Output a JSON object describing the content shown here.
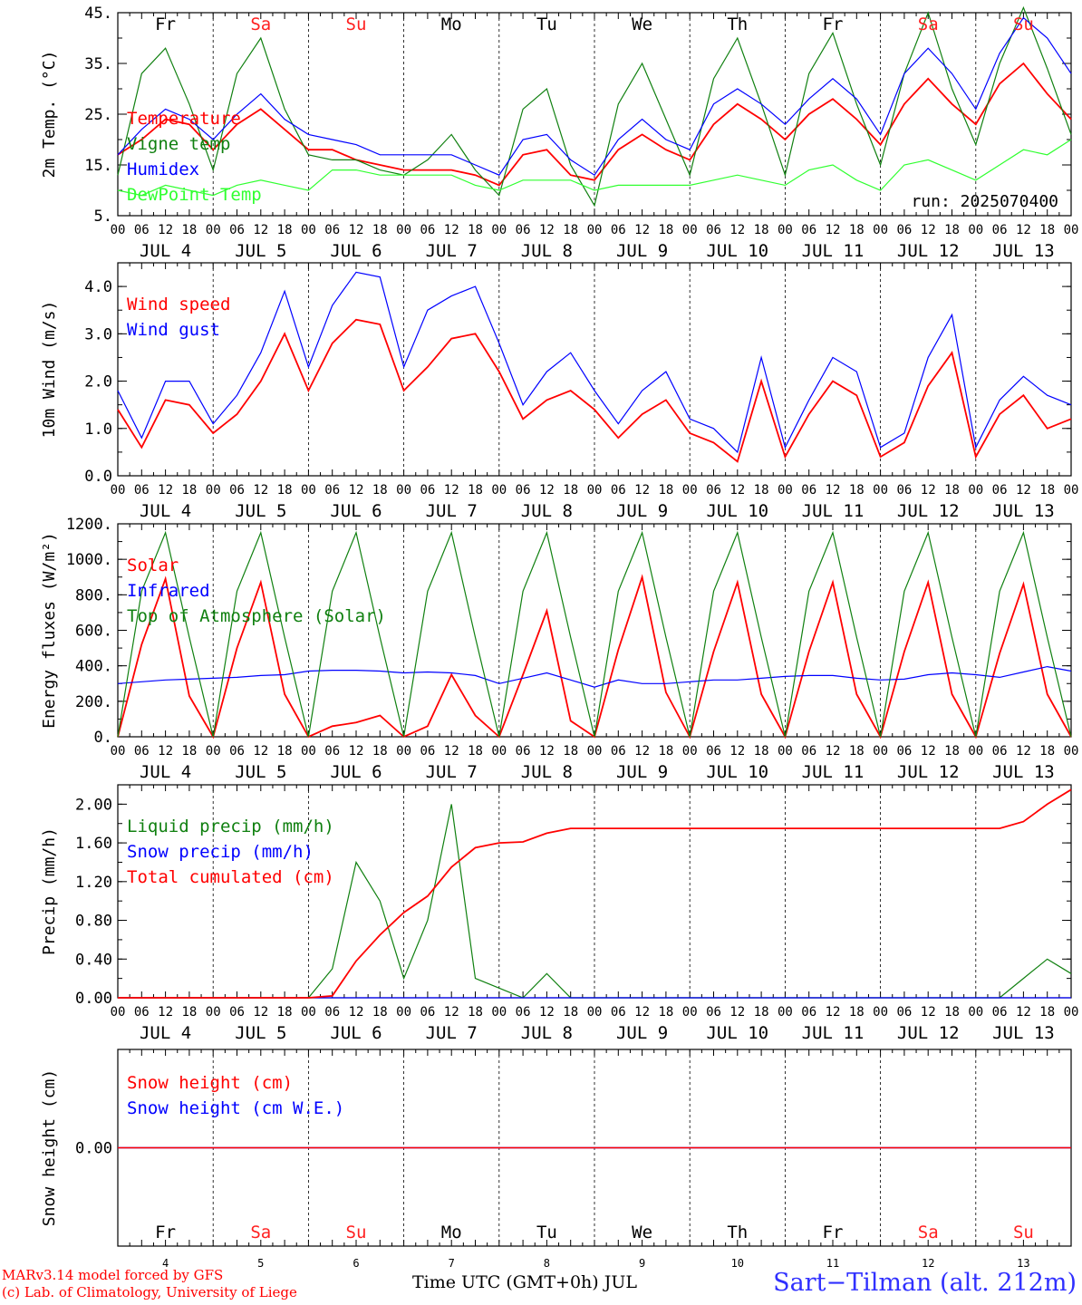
{
  "colors": {
    "red": "#ff0000",
    "green": "#108010",
    "blue": "#0000ff",
    "lightgreen": "#30ff30",
    "axis": "#000000",
    "weekend": "#ff2020"
  },
  "footer": {
    "credit_line1": "MARv3.14 model forced by GFS",
    "credit_line2": "(c) Lab. of Climatology, University of Liege",
    "x_title": "Time UTC (GMT+0h) JUL",
    "station": "Sart−Tilman (alt. 212m)"
  },
  "chart_data": [
    {
      "type": "line",
      "ylabel": "2m Temp. (°C)",
      "ylim": [
        5,
        45
      ],
      "yticks": [
        "5.",
        "15.",
        "25.",
        "35.",
        "45."
      ],
      "annotation": "run: 2025070400",
      "x_hours": [
        0,
        6,
        12,
        18,
        24,
        30,
        36,
        42,
        48,
        54,
        60,
        66,
        72,
        78,
        84,
        90,
        96,
        102,
        108,
        114,
        120,
        126,
        132,
        138,
        144,
        150,
        156,
        162,
        168,
        174,
        180,
        186,
        192,
        198,
        204,
        210,
        216,
        222,
        228,
        234,
        240
      ],
      "series": [
        {
          "name": "Temperature",
          "color": "red",
          "values": [
            17,
            20,
            24,
            23,
            18,
            23,
            26,
            22,
            18,
            18,
            16,
            15,
            14,
            14,
            14,
            13,
            11,
            17,
            18,
            13,
            12,
            18,
            21,
            18,
            16,
            23,
            27,
            24,
            20,
            25,
            28,
            24,
            19,
            27,
            32,
            27,
            23,
            31,
            35,
            29,
            24
          ]
        },
        {
          "name": "Vigne temp",
          "color": "green",
          "values": [
            13,
            33,
            38,
            27,
            14,
            33,
            40,
            26,
            17,
            16,
            16,
            14,
            13,
            16,
            21,
            14,
            9,
            26,
            30,
            15,
            7,
            27,
            35,
            24,
            13,
            32,
            40,
            27,
            13,
            33,
            41,
            27,
            15,
            33,
            45,
            30,
            19,
            35,
            46,
            34,
            21
          ]
        },
        {
          "name": "Humidex",
          "color": "blue",
          "values": [
            17,
            22,
            26,
            24,
            20,
            25,
            29,
            24,
            21,
            20,
            19,
            17,
            17,
            17,
            17,
            15,
            13,
            20,
            21,
            16,
            13,
            20,
            24,
            20,
            18,
            27,
            30,
            27,
            23,
            28,
            32,
            28,
            21,
            33,
            38,
            33,
            26,
            37,
            44,
            40,
            33
          ]
        },
        {
          "name": "DewPoint Temp",
          "color": "lightgreen",
          "values": [
            10,
            9,
            11,
            10,
            9,
            11,
            12,
            11,
            10,
            14,
            14,
            13,
            13,
            13,
            13,
            11,
            10,
            12,
            12,
            12,
            10,
            11,
            11,
            11,
            11,
            12,
            13,
            12,
            11,
            14,
            15,
            12,
            10,
            15,
            16,
            14,
            12,
            15,
            18,
            17,
            20
          ]
        }
      ]
    },
    {
      "type": "line",
      "ylabel": "10m Wind (m/s)",
      "ylim": [
        0,
        4.5
      ],
      "yticks": [
        "0.0",
        "1.0",
        "2.0",
        "3.0",
        "4.0"
      ],
      "x_hours": [
        0,
        6,
        12,
        18,
        24,
        30,
        36,
        42,
        48,
        54,
        60,
        66,
        72,
        78,
        84,
        90,
        96,
        102,
        108,
        114,
        120,
        126,
        132,
        138,
        144,
        150,
        156,
        162,
        168,
        174,
        180,
        186,
        192,
        198,
        204,
        210,
        216,
        222,
        228,
        234,
        240
      ],
      "series": [
        {
          "name": "Wind speed",
          "color": "red",
          "values": [
            1.4,
            0.6,
            1.6,
            1.5,
            0.9,
            1.3,
            2.0,
            3.0,
            1.8,
            2.8,
            3.3,
            3.2,
            1.8,
            2.3,
            2.9,
            3.0,
            2.2,
            1.2,
            1.6,
            1.8,
            1.4,
            0.8,
            1.3,
            1.6,
            0.9,
            0.7,
            0.3,
            2.0,
            0.4,
            1.3,
            2.0,
            1.7,
            0.4,
            0.7,
            1.9,
            2.6,
            0.4,
            1.3,
            1.7,
            1.0,
            1.2
          ]
        },
        {
          "name": "Wind gust",
          "color": "blue",
          "values": [
            1.8,
            0.8,
            2.0,
            2.0,
            1.1,
            1.7,
            2.6,
            3.9,
            2.3,
            3.6,
            4.3,
            4.2,
            2.3,
            3.5,
            3.8,
            4.0,
            2.8,
            1.5,
            2.2,
            2.6,
            1.8,
            1.1,
            1.8,
            2.2,
            1.2,
            1.0,
            0.5,
            2.5,
            0.6,
            1.6,
            2.5,
            2.2,
            0.6,
            0.9,
            2.5,
            3.4,
            0.6,
            1.6,
            2.1,
            1.7,
            1.5
          ]
        }
      ]
    },
    {
      "type": "line",
      "ylabel": "Energy fluxes (W/m²)",
      "ylim": [
        0,
        1200
      ],
      "yticks": [
        "0.",
        "200.",
        "400.",
        "600.",
        "800.",
        "1000.",
        "1200."
      ],
      "x_hours": [
        0,
        6,
        12,
        18,
        24,
        30,
        36,
        42,
        48,
        54,
        60,
        66,
        72,
        78,
        84,
        90,
        96,
        102,
        108,
        114,
        120,
        126,
        132,
        138,
        144,
        150,
        156,
        162,
        168,
        174,
        180,
        186,
        192,
        198,
        204,
        210,
        216,
        222,
        228,
        234,
        240
      ],
      "series": [
        {
          "name": "Solar",
          "color": "red",
          "values": [
            0,
            520,
            890,
            230,
            0,
            500,
            870,
            240,
            0,
            60,
            80,
            120,
            0,
            60,
            350,
            120,
            0,
            350,
            710,
            90,
            0,
            490,
            900,
            250,
            0,
            480,
            870,
            240,
            0,
            480,
            870,
            240,
            0,
            480,
            870,
            240,
            0,
            470,
            860,
            240,
            0
          ]
        },
        {
          "name": "Infrared",
          "color": "blue",
          "values": [
            300,
            310,
            320,
            325,
            330,
            335,
            345,
            350,
            370,
            375,
            375,
            370,
            360,
            365,
            360,
            345,
            300,
            330,
            360,
            320,
            280,
            320,
            300,
            300,
            310,
            320,
            320,
            330,
            340,
            345,
            345,
            330,
            320,
            325,
            350,
            360,
            350,
            335,
            365,
            395,
            370
          ]
        },
        {
          "name": "Top of Atmosphere (Solar)",
          "color": "green",
          "values": [
            0,
            820,
            1150,
            560,
            0,
            820,
            1150,
            560,
            0,
            820,
            1150,
            560,
            0,
            820,
            1150,
            560,
            0,
            820,
            1150,
            560,
            0,
            820,
            1150,
            560,
            0,
            820,
            1150,
            560,
            0,
            820,
            1150,
            560,
            0,
            820,
            1150,
            560,
            0,
            820,
            1150,
            560,
            0
          ]
        }
      ]
    },
    {
      "type": "line",
      "ylabel": "Precip (mm/h)",
      "ylim": [
        0,
        2.2
      ],
      "yticks": [
        "0.00",
        "0.40",
        "0.80",
        "1.20",
        "1.60",
        "2.00"
      ],
      "x_hours": [
        0,
        6,
        12,
        18,
        24,
        30,
        36,
        42,
        48,
        54,
        60,
        66,
        72,
        78,
        84,
        90,
        96,
        102,
        108,
        114,
        120,
        126,
        132,
        138,
        144,
        150,
        156,
        162,
        168,
        174,
        180,
        186,
        192,
        198,
        204,
        210,
        216,
        222,
        228,
        234,
        240
      ],
      "series": [
        {
          "name": "Liquid precip (mm/h)",
          "color": "green",
          "values": [
            0,
            0,
            0,
            0,
            0,
            0,
            0,
            0,
            0,
            0.3,
            1.4,
            1.0,
            0.2,
            0.8,
            2.0,
            0.2,
            0.1,
            0,
            0.25,
            0,
            0,
            0,
            0,
            0,
            0,
            0,
            0,
            0,
            0,
            0,
            0,
            0,
            0,
            0,
            0,
            0,
            0,
            0,
            0.2,
            0.4,
            0.25
          ]
        },
        {
          "name": "Snow precip (mm/h)",
          "color": "blue",
          "values": [
            0,
            0,
            0,
            0,
            0,
            0,
            0,
            0,
            0,
            0,
            0,
            0,
            0,
            0,
            0,
            0,
            0,
            0,
            0,
            0,
            0,
            0,
            0,
            0,
            0,
            0,
            0,
            0,
            0,
            0,
            0,
            0,
            0,
            0,
            0,
            0,
            0,
            0,
            0,
            0,
            0
          ]
        },
        {
          "name": "Total cumulated (cm)",
          "color": "red",
          "values": [
            0,
            0,
            0,
            0,
            0,
            0,
            0,
            0,
            0,
            0.02,
            0.38,
            0.65,
            0.88,
            1.05,
            1.35,
            1.55,
            1.6,
            1.61,
            1.7,
            1.75,
            1.75,
            1.75,
            1.75,
            1.75,
            1.75,
            1.75,
            1.75,
            1.75,
            1.75,
            1.75,
            1.75,
            1.75,
            1.75,
            1.75,
            1.75,
            1.75,
            1.75,
            1.75,
            1.82,
            2.0,
            2.15
          ]
        }
      ]
    },
    {
      "type": "line",
      "ylabel": "Snow height (cm)",
      "ylim": [
        -1,
        1
      ],
      "yticks": [
        "0.00"
      ],
      "series": [
        {
          "name": "Snow height (cm)",
          "color": "red",
          "values": [
            0,
            0
          ]
        },
        {
          "name": "Snow height (cm W.E.)",
          "color": "blue",
          "values": [
            0,
            0
          ]
        }
      ]
    }
  ],
  "days": [
    {
      "abbr": "Fr",
      "num": "4",
      "label": "JUL  4",
      "weekend": false
    },
    {
      "abbr": "Sa",
      "num": "5",
      "label": "JUL  5",
      "weekend": true
    },
    {
      "abbr": "Su",
      "num": "6",
      "label": "JUL  6",
      "weekend": true
    },
    {
      "abbr": "Mo",
      "num": "7",
      "label": "JUL  7",
      "weekend": false
    },
    {
      "abbr": "Tu",
      "num": "8",
      "label": "JUL  8",
      "weekend": false
    },
    {
      "abbr": "We",
      "num": "9",
      "label": "JUL  9",
      "weekend": false
    },
    {
      "abbr": "Th",
      "num": "10",
      "label": "JUL 10",
      "weekend": false
    },
    {
      "abbr": "Fr",
      "num": "11",
      "label": "JUL 11",
      "weekend": false
    },
    {
      "abbr": "Sa",
      "num": "12",
      "label": "JUL 12",
      "weekend": true
    },
    {
      "abbr": "Su",
      "num": "13",
      "label": "JUL 13",
      "weekend": true
    }
  ],
  "hour_ticks": [
    "00",
    "06",
    "12",
    "18"
  ],
  "end_tick": "00"
}
